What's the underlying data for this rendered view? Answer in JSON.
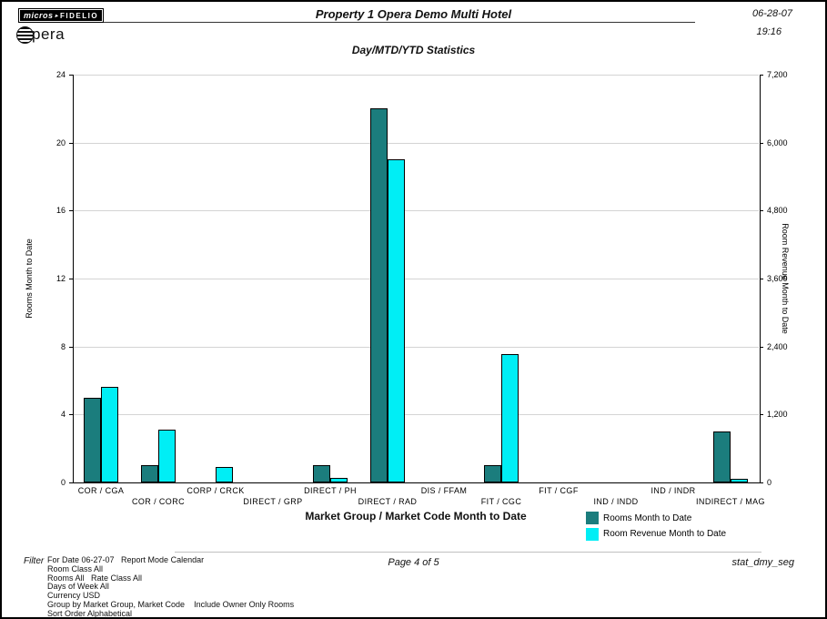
{
  "header": {
    "brand": {
      "micros": "micros",
      "fidelio": "FIDELIO",
      "sep": "▸",
      "opera_rest": "pera"
    },
    "title": "Property 1 Opera Demo Multi Hotel",
    "date": "06-28-07",
    "time": "19:16"
  },
  "chart_data": {
    "type": "bar",
    "title": "Day/MTD/YTD Statistics",
    "xlabel": "Market Group / Market Code Month to Date",
    "categories": [
      "COR / CGA",
      "COR / CORC",
      "CORP / CRCK",
      "DIRECT / GRP",
      "DIRECT / PH",
      "DIRECT / RAD",
      "DIS / FFAM",
      "FIT / CGC",
      "FIT / CGF",
      "IND / INDD",
      "IND / INDR",
      "INDIRECT / MAG"
    ],
    "series": [
      {
        "name": "Rooms Month to Date",
        "axis": "left",
        "color": "#1b7d7d",
        "values": [
          5,
          1,
          0,
          0,
          1,
          22,
          0,
          1,
          0,
          0,
          0,
          3
        ]
      },
      {
        "name": "Room Revenue Month to Date",
        "axis": "right",
        "color": "#00eef5",
        "values": [
          1690,
          930,
          270,
          0,
          80,
          5700,
          0,
          2270,
          0,
          0,
          0,
          70
        ]
      }
    ],
    "left_axis": {
      "label": "Rooms Month to Date",
      "tick_labels": [
        "0",
        "4",
        "8",
        "12",
        "16",
        "20",
        "24"
      ],
      "min": 0,
      "max": 24
    },
    "right_axis": {
      "label": "Room Revenue Month to Date",
      "tick_labels": [
        "0",
        "1,200",
        "2,400",
        "3,600",
        "4,800",
        "6,000",
        "7,200"
      ],
      "min": 0,
      "max": 7200
    },
    "grid": true,
    "legend_position": "bottom-right"
  },
  "footer": {
    "filter_label": "Filter",
    "filter_lines": [
      "For Date 06-27-07   Report Mode Calendar",
      "Room Class All",
      "Rooms All   Rate Class All",
      "Days of Week All",
      "Currency USD",
      "Group by Market Group, Market Code    Include Owner Only Rooms",
      "Sort Order Alphabetical"
    ],
    "page": "Page 4 of 5",
    "report_id": "stat_dmy_seg"
  }
}
